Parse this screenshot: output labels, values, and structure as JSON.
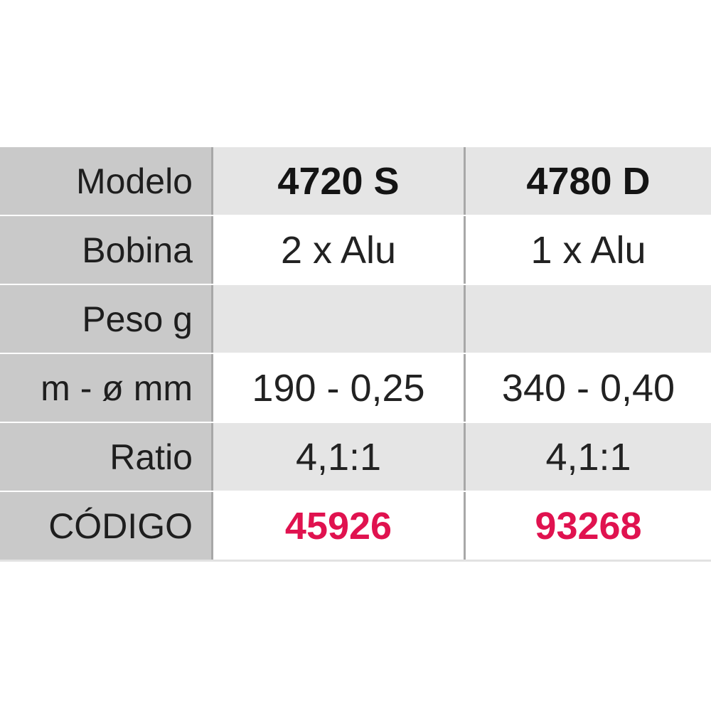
{
  "table": {
    "columns": [
      "4720 S",
      "4780 D"
    ],
    "rows": [
      {
        "label": "Modelo",
        "values": [
          "4720 S",
          "4780 D"
        ]
      },
      {
        "label": "Bobina",
        "values": [
          "2 x Alu",
          "1 x Alu"
        ]
      },
      {
        "label": "Peso g",
        "values": [
          "",
          ""
        ]
      },
      {
        "label": "m - ø mm",
        "values": [
          "190 - 0,25",
          "340 - 0,40"
        ]
      },
      {
        "label": "Ratio",
        "values": [
          "4,1:1",
          "4,1:1"
        ]
      },
      {
        "label": "CÓDIGO",
        "values": [
          "45926",
          "93268"
        ]
      }
    ]
  },
  "colors": {
    "code": "#e0124f",
    "label_bg": "#c9c9c9",
    "row_alt_bg": "#e5e5e5"
  }
}
